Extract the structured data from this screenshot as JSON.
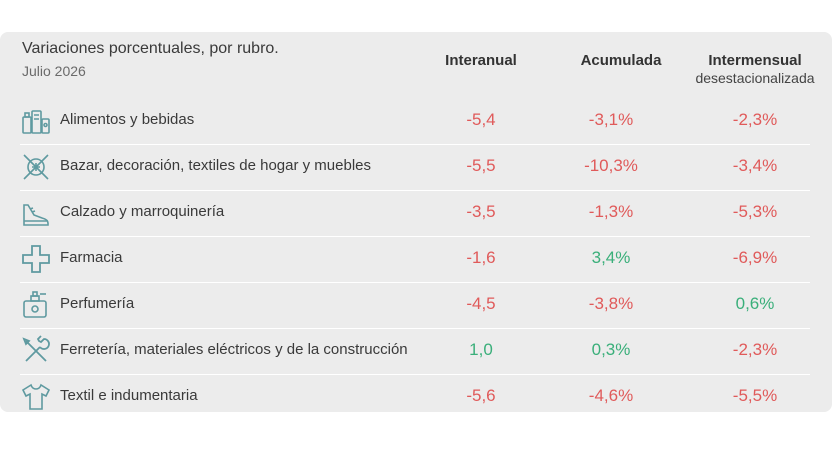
{
  "header": {
    "title": "Variaciones porcentuales, por rubro.",
    "subtitle": "Julio 2026",
    "col_interanual": "Interanual",
    "col_acumulada": "Acumulada",
    "col_intermensual": "Intermensual",
    "col_intermensual_sub": "desestacionalizada"
  },
  "colors": {
    "negative": "#e05a5a",
    "positive": "#3aaf7a",
    "icon": "#5f9aa0"
  },
  "rows": [
    {
      "icon": "grocery-icon",
      "label": "Alimentos y bebidas",
      "interanual": "-5,4",
      "acumulada": "-3,1%",
      "intermensual": "-2,3%"
    },
    {
      "icon": "home-decor-icon",
      "label": "Bazar, decoración, textiles de hogar y muebles",
      "interanual": "-5,5",
      "acumulada": "-10,3%",
      "intermensual": "-3,4%"
    },
    {
      "icon": "shoe-icon",
      "label": "Calzado y marroquinería",
      "interanual": "-3,5",
      "acumulada": "-1,3%",
      "intermensual": "-5,3%"
    },
    {
      "icon": "pharmacy-cross-icon",
      "label": "Farmacia",
      "interanual": "-1,6",
      "acumulada": "3,4%",
      "intermensual": "-6,9%"
    },
    {
      "icon": "perfume-icon",
      "label": "Perfumería",
      "interanual": "-4,5",
      "acumulada": "-3,8%",
      "intermensual": "0,6%"
    },
    {
      "icon": "tools-icon",
      "label": "Ferretería, materiales eléctricos y de la construcción",
      "interanual": "1,0",
      "acumulada": "0,3%",
      "intermensual": "-2,3%"
    },
    {
      "icon": "shirt-icon",
      "label": "Textil e indumentaria",
      "interanual": "-5,6",
      "acumulada": "-4,6%",
      "intermensual": "-5,5%"
    }
  ]
}
